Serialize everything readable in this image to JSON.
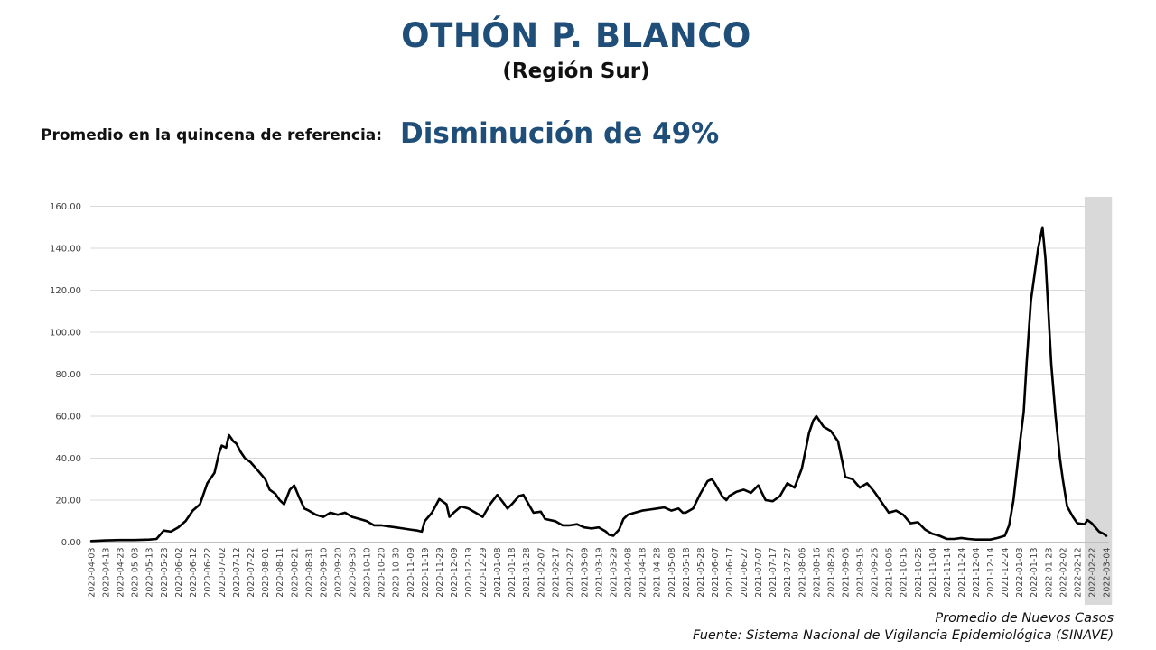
{
  "header": {
    "title": "OTHÓN P. BLANCO",
    "subtitle": "(Región Sur)",
    "reference_label": "Promedio en la quincena de referencia:",
    "reference_value": "Disminución de 49%"
  },
  "footer": {
    "series_note": "Promedio de Nuevos Casos",
    "source": "Fuente: Sistema Nacional de Vigilancia Epidemiológica (SINAVE)"
  },
  "colors": {
    "title": "#1f4e79",
    "line": "#000000",
    "grid": "#d9d9d9",
    "shade": "#d9d9d9"
  },
  "chart_data": {
    "type": "line",
    "ylim": [
      0,
      160
    ],
    "y_ticks": [
      "0.00",
      "20.00",
      "40.00",
      "60.00",
      "80.00",
      "100.00",
      "120.00",
      "140.00",
      "160.00"
    ],
    "grid": true,
    "x_tick_labels": [
      "2020-04-03",
      "2020-04-13",
      "2020-04-23",
      "2020-05-03",
      "2020-05-13",
      "2020-05-23",
      "2020-06-02",
      "2020-06-12",
      "2020-06-22",
      "2020-07-02",
      "2020-07-12",
      "2020-07-22",
      "2020-08-01",
      "2020-08-11",
      "2020-08-21",
      "2020-08-31",
      "2020-09-10",
      "2020-09-20",
      "2020-09-30",
      "2020-10-10",
      "2020-10-20",
      "2020-10-30",
      "2020-11-09",
      "2020-11-19",
      "2020-11-29",
      "2020-12-09",
      "2020-12-19",
      "2020-12-29",
      "2021-01-08",
      "2021-01-18",
      "2021-01-28",
      "2021-02-07",
      "2021-02-17",
      "2021-02-27",
      "2021-03-09",
      "2021-03-19",
      "2021-03-29",
      "2021-04-08",
      "2021-04-18",
      "2021-04-28",
      "2021-05-08",
      "2021-05-18",
      "2021-05-28",
      "2021-06-07",
      "2021-06-17",
      "2021-06-27",
      "2021-07-07",
      "2021-07-17",
      "2021-07-27",
      "2021-08-06",
      "2021-08-16",
      "2021-08-26",
      "2021-09-05",
      "2021-09-15",
      "2021-09-25",
      "2021-10-05",
      "2021-10-15",
      "2021-10-25",
      "2021-11-04",
      "2021-11-14",
      "2021-11-24",
      "2021-12-04",
      "2021-12-14",
      "2021-12-24",
      "2022-01-03",
      "2022-01-13",
      "2022-01-23",
      "2022-02-02",
      "2022-02-12",
      "2022-02-22",
      "2022-03-04"
    ],
    "shaded_region": [
      "2022-02-22",
      "2022-03-06"
    ],
    "series": [
      {
        "points": [
          [
            "2020-04-03",
            0.5
          ],
          [
            "2020-04-13",
            0.8
          ],
          [
            "2020-04-23",
            1.0
          ],
          [
            "2020-05-03",
            1.0
          ],
          [
            "2020-05-13",
            1.2
          ],
          [
            "2020-05-18",
            1.5
          ],
          [
            "2020-05-23",
            5.5
          ],
          [
            "2020-05-28",
            5.0
          ],
          [
            "2020-06-02",
            7.0
          ],
          [
            "2020-06-07",
            10.0
          ],
          [
            "2020-06-12",
            15.0
          ],
          [
            "2020-06-17",
            18.0
          ],
          [
            "2020-06-22",
            28.0
          ],
          [
            "2020-06-27",
            33.0
          ],
          [
            "2020-06-30",
            42.0
          ],
          [
            "2020-07-02",
            46.0
          ],
          [
            "2020-07-05",
            45.0
          ],
          [
            "2020-07-07",
            51.0
          ],
          [
            "2020-07-10",
            48.0
          ],
          [
            "2020-07-12",
            47.0
          ],
          [
            "2020-07-15",
            43.0
          ],
          [
            "2020-07-18",
            40.0
          ],
          [
            "2020-07-22",
            38.0
          ],
          [
            "2020-07-27",
            34.0
          ],
          [
            "2020-08-01",
            30.0
          ],
          [
            "2020-08-04",
            25.0
          ],
          [
            "2020-08-08",
            23.0
          ],
          [
            "2020-08-11",
            20.0
          ],
          [
            "2020-08-14",
            18.0
          ],
          [
            "2020-08-18",
            25.0
          ],
          [
            "2020-08-21",
            27.0
          ],
          [
            "2020-08-24",
            22.0
          ],
          [
            "2020-08-28",
            16.0
          ],
          [
            "2020-08-31",
            15.0
          ],
          [
            "2020-09-05",
            13.0
          ],
          [
            "2020-09-10",
            12.0
          ],
          [
            "2020-09-15",
            14.0
          ],
          [
            "2020-09-20",
            13.0
          ],
          [
            "2020-09-25",
            14.0
          ],
          [
            "2020-09-30",
            12.0
          ],
          [
            "2020-10-05",
            11.0
          ],
          [
            "2020-10-10",
            10.0
          ],
          [
            "2020-10-15",
            8.0
          ],
          [
            "2020-10-20",
            8.0
          ],
          [
            "2020-10-25",
            7.5
          ],
          [
            "2020-10-30",
            7.0
          ],
          [
            "2020-11-04",
            6.5
          ],
          [
            "2020-11-09",
            6.0
          ],
          [
            "2020-11-14",
            5.5
          ],
          [
            "2020-11-17",
            5.0
          ],
          [
            "2020-11-19",
            10.0
          ],
          [
            "2020-11-24",
            14.0
          ],
          [
            "2020-11-29",
            20.5
          ],
          [
            "2020-12-04",
            18.0
          ],
          [
            "2020-12-06",
            12.0
          ],
          [
            "2020-12-09",
            14.0
          ],
          [
            "2020-12-14",
            17.0
          ],
          [
            "2020-12-19",
            16.0
          ],
          [
            "2020-12-24",
            14.0
          ],
          [
            "2020-12-29",
            12.0
          ],
          [
            "2021-01-03",
            18.0
          ],
          [
            "2021-01-08",
            22.5
          ],
          [
            "2021-01-13",
            18.0
          ],
          [
            "2021-01-15",
            16.0
          ],
          [
            "2021-01-18",
            18.0
          ],
          [
            "2021-01-23",
            22.0
          ],
          [
            "2021-01-26",
            22.5
          ],
          [
            "2021-01-28",
            20.0
          ],
          [
            "2021-02-02",
            14.0
          ],
          [
            "2021-02-07",
            14.5
          ],
          [
            "2021-02-10",
            11.0
          ],
          [
            "2021-02-17",
            10.0
          ],
          [
            "2021-02-22",
            8.0
          ],
          [
            "2021-02-27",
            8.0
          ],
          [
            "2021-03-04",
            8.5
          ],
          [
            "2021-03-09",
            7.0
          ],
          [
            "2021-03-14",
            6.5
          ],
          [
            "2021-03-19",
            7.0
          ],
          [
            "2021-03-24",
            5.0
          ],
          [
            "2021-03-26",
            3.5
          ],
          [
            "2021-03-29",
            3.0
          ],
          [
            "2021-04-02",
            6.0
          ],
          [
            "2021-04-05",
            11.0
          ],
          [
            "2021-04-08",
            13.0
          ],
          [
            "2021-04-13",
            14.0
          ],
          [
            "2021-04-18",
            15.0
          ],
          [
            "2021-04-23",
            15.5
          ],
          [
            "2021-04-28",
            16.0
          ],
          [
            "2021-05-03",
            16.5
          ],
          [
            "2021-05-08",
            15.0
          ],
          [
            "2021-05-13",
            16.0
          ],
          [
            "2021-05-16",
            14.0
          ],
          [
            "2021-05-18",
            14.0
          ],
          [
            "2021-05-23",
            16.0
          ],
          [
            "2021-05-28",
            23.0
          ],
          [
            "2021-06-02",
            29.0
          ],
          [
            "2021-06-05",
            30.0
          ],
          [
            "2021-06-07",
            28.0
          ],
          [
            "2021-06-12",
            22.0
          ],
          [
            "2021-06-15",
            20.0
          ],
          [
            "2021-06-17",
            22.0
          ],
          [
            "2021-06-22",
            24.0
          ],
          [
            "2021-06-27",
            25.0
          ],
          [
            "2021-07-02",
            23.5
          ],
          [
            "2021-07-07",
            27.0
          ],
          [
            "2021-07-12",
            20.0
          ],
          [
            "2021-07-17",
            19.5
          ],
          [
            "2021-07-22",
            22.0
          ],
          [
            "2021-07-27",
            28.0
          ],
          [
            "2021-08-01",
            26.0
          ],
          [
            "2021-08-06",
            35.0
          ],
          [
            "2021-08-09",
            45.0
          ],
          [
            "2021-08-11",
            52.0
          ],
          [
            "2021-08-14",
            58.0
          ],
          [
            "2021-08-16",
            60.0
          ],
          [
            "2021-08-19",
            57.0
          ],
          [
            "2021-08-21",
            55.0
          ],
          [
            "2021-08-26",
            53.0
          ],
          [
            "2021-08-31",
            48.0
          ],
          [
            "2021-09-03",
            38.0
          ],
          [
            "2021-09-05",
            31.0
          ],
          [
            "2021-09-10",
            30.0
          ],
          [
            "2021-09-15",
            26.0
          ],
          [
            "2021-09-20",
            28.0
          ],
          [
            "2021-09-25",
            24.0
          ],
          [
            "2021-09-30",
            19.0
          ],
          [
            "2021-10-05",
            14.0
          ],
          [
            "2021-10-10",
            15.0
          ],
          [
            "2021-10-15",
            13.0
          ],
          [
            "2021-10-20",
            9.0
          ],
          [
            "2021-10-25",
            9.5
          ],
          [
            "2021-10-30",
            6.0
          ],
          [
            "2021-11-04",
            4.0
          ],
          [
            "2021-11-09",
            3.0
          ],
          [
            "2021-11-14",
            1.5
          ],
          [
            "2021-11-19",
            1.5
          ],
          [
            "2021-11-24",
            2.0
          ],
          [
            "2021-11-29",
            1.5
          ],
          [
            "2021-12-04",
            1.2
          ],
          [
            "2021-12-09",
            1.2
          ],
          [
            "2021-12-14",
            1.2
          ],
          [
            "2021-12-19",
            2.0
          ],
          [
            "2021-12-24",
            3.0
          ],
          [
            "2021-12-27",
            8.0
          ],
          [
            "2021-12-30",
            20.0
          ],
          [
            "2022-01-03",
            45.0
          ],
          [
            "2022-01-06",
            62.0
          ],
          [
            "2022-01-08",
            85.0
          ],
          [
            "2022-01-11",
            115.0
          ],
          [
            "2022-01-13",
            125.0
          ],
          [
            "2022-01-16",
            140.0
          ],
          [
            "2022-01-19",
            150.0
          ],
          [
            "2022-01-21",
            135.0
          ],
          [
            "2022-01-23",
            110.0
          ],
          [
            "2022-01-25",
            85.0
          ],
          [
            "2022-01-28",
            60.0
          ],
          [
            "2022-01-31",
            40.0
          ],
          [
            "2022-02-02",
            30.0
          ],
          [
            "2022-02-05",
            17.0
          ],
          [
            "2022-02-09",
            12.0
          ],
          [
            "2022-02-12",
            9.0
          ],
          [
            "2022-02-17",
            8.5
          ],
          [
            "2022-02-19",
            10.5
          ],
          [
            "2022-02-22",
            9.0
          ],
          [
            "2022-02-27",
            5.0
          ],
          [
            "2022-03-02",
            4.0
          ],
          [
            "2022-03-04",
            3.0
          ]
        ]
      }
    ]
  }
}
